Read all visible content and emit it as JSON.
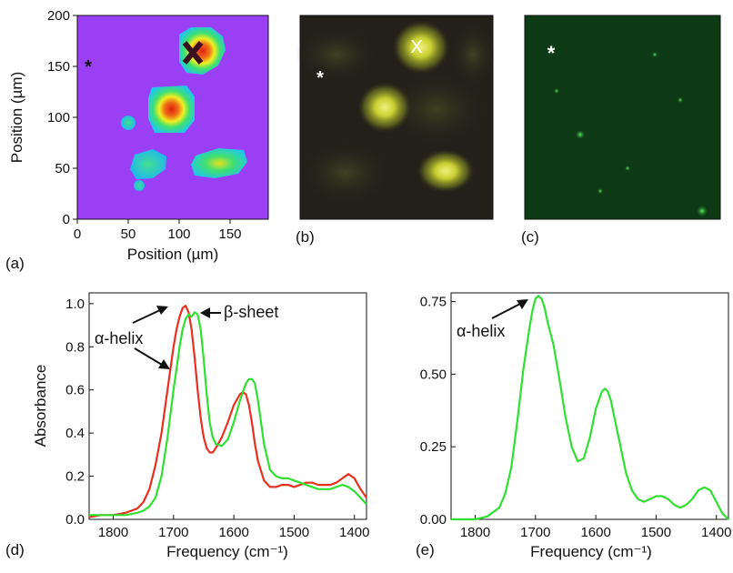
{
  "panels": {
    "a": {
      "label": "(a)",
      "xlabel": "Position (µm)",
      "ylabel": "Position (µm)",
      "xticks": [
        "0",
        "50",
        "100",
        "150"
      ],
      "yticks": [
        "0",
        "50",
        "100",
        "150",
        "200"
      ],
      "marker": "*",
      "colors": {
        "background": "#9b3ff5",
        "high": "#e02010",
        "mid": "#f0f020",
        "low": "#20d0e0"
      }
    },
    "b": {
      "label": "(b)",
      "marker_x": "X",
      "marker_star": "*"
    },
    "c": {
      "label": "(c)",
      "marker_star": "*"
    },
    "d": {
      "label": "(d)"
    },
    "e": {
      "label": "(e)"
    }
  },
  "chart_data": [
    {
      "type": "line",
      "panel": "(d)",
      "xlabel": "Frequency (cm⁻¹)",
      "ylabel": "Absorbance",
      "xlim": [
        1840,
        1380
      ],
      "ylim": [
        0,
        1.05
      ],
      "xticks": [
        "1800",
        "1700",
        "1600",
        "1500",
        "1400"
      ],
      "yticks": [
        "0.0",
        "0.2",
        "0.4",
        "0.6",
        "0.8",
        "1.0"
      ],
      "annotations": [
        "α-helix",
        "β-sheet"
      ],
      "series": [
        {
          "color": "#e83020",
          "x": [
            1840,
            1820,
            1800,
            1780,
            1760,
            1750,
            1740,
            1730,
            1720,
            1710,
            1700,
            1695,
            1690,
            1685,
            1680,
            1675,
            1670,
            1665,
            1660,
            1655,
            1650,
            1645,
            1640,
            1635,
            1630,
            1620,
            1610,
            1600,
            1590,
            1585,
            1580,
            1575,
            1570,
            1565,
            1560,
            1550,
            1540,
            1530,
            1520,
            1510,
            1500,
            1490,
            1480,
            1470,
            1460,
            1450,
            1440,
            1430,
            1420,
            1410,
            1400,
            1390,
            1380
          ],
          "y": [
            0.01,
            0.02,
            0.02,
            0.03,
            0.05,
            0.08,
            0.14,
            0.25,
            0.4,
            0.6,
            0.8,
            0.88,
            0.94,
            0.98,
            0.99,
            0.96,
            0.88,
            0.75,
            0.6,
            0.47,
            0.38,
            0.33,
            0.31,
            0.31,
            0.33,
            0.38,
            0.45,
            0.53,
            0.58,
            0.59,
            0.58,
            0.53,
            0.45,
            0.35,
            0.27,
            0.18,
            0.15,
            0.15,
            0.16,
            0.16,
            0.15,
            0.16,
            0.17,
            0.17,
            0.16,
            0.16,
            0.16,
            0.17,
            0.19,
            0.21,
            0.19,
            0.14,
            0.1
          ]
        },
        {
          "color": "#30e030",
          "x": [
            1840,
            1820,
            1800,
            1780,
            1760,
            1750,
            1740,
            1730,
            1720,
            1710,
            1700,
            1690,
            1685,
            1680,
            1675,
            1670,
            1665,
            1660,
            1655,
            1650,
            1645,
            1640,
            1635,
            1630,
            1620,
            1610,
            1600,
            1590,
            1580,
            1575,
            1570,
            1565,
            1560,
            1555,
            1550,
            1540,
            1530,
            1520,
            1510,
            1500,
            1490,
            1480,
            1470,
            1460,
            1450,
            1440,
            1430,
            1420,
            1410,
            1400,
            1390,
            1380
          ],
          "y": [
            0.02,
            0.02,
            0.02,
            0.02,
            0.03,
            0.04,
            0.06,
            0.1,
            0.2,
            0.38,
            0.6,
            0.8,
            0.88,
            0.93,
            0.95,
            0.94,
            0.96,
            0.95,
            0.88,
            0.74,
            0.58,
            0.45,
            0.38,
            0.35,
            0.34,
            0.37,
            0.45,
            0.55,
            0.63,
            0.65,
            0.65,
            0.63,
            0.55,
            0.45,
            0.35,
            0.23,
            0.2,
            0.19,
            0.19,
            0.18,
            0.17,
            0.16,
            0.15,
            0.14,
            0.14,
            0.14,
            0.15,
            0.16,
            0.15,
            0.13,
            0.1,
            0.07
          ]
        }
      ]
    },
    {
      "type": "line",
      "panel": "(e)",
      "xlabel": "Frequency (cm⁻¹)",
      "ylabel": "",
      "xlim": [
        1840,
        1380
      ],
      "ylim": [
        0,
        0.78
      ],
      "xticks": [
        "1800",
        "1700",
        "1600",
        "1500",
        "1400"
      ],
      "yticks": [
        "0.00",
        "0.25",
        "0.50",
        "0.75"
      ],
      "annotations": [
        "α-helix"
      ],
      "series": [
        {
          "color": "#30e030",
          "x": [
            1840,
            1800,
            1780,
            1760,
            1750,
            1740,
            1730,
            1720,
            1710,
            1705,
            1700,
            1695,
            1690,
            1685,
            1680,
            1670,
            1660,
            1650,
            1640,
            1630,
            1620,
            1610,
            1600,
            1590,
            1585,
            1580,
            1575,
            1570,
            1560,
            1550,
            1540,
            1530,
            1520,
            1510,
            1500,
            1490,
            1480,
            1470,
            1460,
            1450,
            1440,
            1430,
            1420,
            1410,
            1400,
            1390,
            1380
          ],
          "y": [
            0.0,
            0.0,
            0.01,
            0.04,
            0.09,
            0.18,
            0.34,
            0.52,
            0.66,
            0.72,
            0.76,
            0.77,
            0.76,
            0.73,
            0.68,
            0.6,
            0.48,
            0.35,
            0.25,
            0.2,
            0.21,
            0.28,
            0.38,
            0.44,
            0.45,
            0.44,
            0.41,
            0.36,
            0.26,
            0.16,
            0.1,
            0.07,
            0.06,
            0.07,
            0.08,
            0.08,
            0.07,
            0.05,
            0.04,
            0.05,
            0.07,
            0.1,
            0.11,
            0.1,
            0.06,
            0.02,
            0.0
          ]
        }
      ]
    }
  ]
}
